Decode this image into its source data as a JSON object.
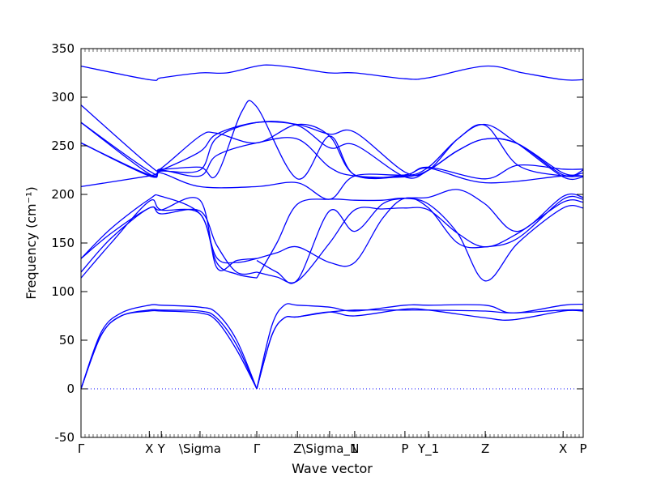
{
  "chart_data": {
    "type": "line",
    "xlabel": "Wave vector",
    "ylabel": "Frequency (cm⁻¹)",
    "ylim": [
      -50,
      350
    ],
    "yticks": [
      -50,
      0,
      50,
      100,
      150,
      200,
      250,
      300,
      350
    ],
    "xlim": [
      0,
      1
    ],
    "grid": false,
    "band_color": "#0000ff",
    "zero_line_color": "#0000ff",
    "zero_line_style": "dotted",
    "high_symmetry_points": [
      {
        "label": "Γ",
        "x": 0.0
      },
      {
        "label": "X",
        "x": 0.136
      },
      {
        "label": "Y",
        "x": 0.16
      },
      {
        "label": "\\Sigma",
        "x": 0.237
      },
      {
        "label": "Γ",
        "x": 0.35
      },
      {
        "label": "Z",
        "x": 0.431
      },
      {
        "label": "\\Sigma_1",
        "x": 0.495
      },
      {
        "label": "N",
        "x": 0.545
      },
      {
        "label": "P",
        "x": 0.645
      },
      {
        "label": "Y_1",
        "x": 0.692
      },
      {
        "label": "Z",
        "x": 0.805
      },
      {
        "label": "X",
        "x": 0.96
      },
      {
        "label": "P",
        "x": 1.0
      }
    ],
    "series": [
      {
        "x": [
          0,
          0.04,
          0.08,
          0.136,
          0.16,
          0.237,
          0.27,
          0.31,
          0.35
        ],
        "values": [
          0,
          55,
          75,
          80,
          80,
          78,
          70,
          40,
          0
        ]
      },
      {
        "x": [
          0,
          0.04,
          0.08,
          0.136,
          0.16,
          0.237,
          0.27,
          0.31,
          0.35
        ],
        "values": [
          0,
          55,
          75,
          81,
          81,
          80,
          73,
          45,
          0
        ]
      },
      {
        "x": [
          0,
          0.04,
          0.08,
          0.136,
          0.16,
          0.237,
          0.27,
          0.31,
          0.35
        ],
        "values": [
          0,
          58,
          78,
          86,
          86,
          84,
          78,
          50,
          0
        ]
      },
      {
        "x": [
          0.35,
          0.38,
          0.405,
          0.431,
          0.495,
          0.545,
          0.645,
          0.692,
          0.805,
          0.86,
          0.96,
          1.0
        ],
        "values": [
          0,
          55,
          73,
          74,
          79,
          75,
          82,
          81,
          73,
          71,
          80,
          80
        ]
      },
      {
        "x": [
          0.35,
          0.38,
          0.405,
          0.431,
          0.495,
          0.545,
          0.645,
          0.692,
          0.805,
          0.86,
          0.96,
          1.0
        ],
        "values": [
          0,
          55,
          73,
          74,
          79,
          81,
          81,
          81,
          80,
          78,
          81,
          81
        ]
      },
      {
        "x": [
          0.35,
          0.38,
          0.405,
          0.431,
          0.495,
          0.545,
          0.645,
          0.692,
          0.805,
          0.86,
          0.96,
          1.0
        ],
        "values": [
          0,
          65,
          86,
          86,
          84,
          80,
          86,
          86,
          86,
          78,
          86,
          87
        ]
      },
      {
        "x": [
          0,
          0.06,
          0.136,
          0.16,
          0.237,
          0.27,
          0.31,
          0.35
        ],
        "values": [
          114,
          150,
          193,
          184,
          180,
          130,
          118,
          114
        ]
      },
      {
        "x": [
          0,
          0.06,
          0.136,
          0.16,
          0.237,
          0.27,
          0.31,
          0.35
        ],
        "values": [
          120,
          155,
          186,
          180,
          183,
          148,
          120,
          120
        ]
      },
      {
        "x": [
          0,
          0.06,
          0.136,
          0.16,
          0.237,
          0.27,
          0.31,
          0.35
        ],
        "values": [
          134,
          160,
          186,
          184,
          194,
          125,
          132,
          134
        ]
      },
      {
        "x": [
          0,
          0.06,
          0.136,
          0.16,
          0.237,
          0.27,
          0.31,
          0.35
        ],
        "values": [
          134,
          165,
          195,
          198,
          180,
          135,
          130,
          134
        ]
      },
      {
        "x": [
          0.35,
          0.39,
          0.431,
          0.495,
          0.545,
          0.6,
          0.645,
          0.692,
          0.75,
          0.805,
          0.87,
          0.96,
          1.0
        ],
        "values": [
          114,
          150,
          190,
          195,
          194,
          194,
          196,
          190,
          160,
          111,
          150,
          186,
          186
        ]
      },
      {
        "x": [
          0.35,
          0.39,
          0.431,
          0.495,
          0.545,
          0.6,
          0.645,
          0.692,
          0.75,
          0.805,
          0.87,
          0.96,
          1.0
        ],
        "values": [
          120,
          115,
          111,
          150,
          184,
          185,
          186,
          184,
          160,
          146,
          160,
          192,
          192
        ]
      },
      {
        "x": [
          0.35,
          0.39,
          0.431,
          0.495,
          0.545,
          0.6,
          0.645,
          0.692,
          0.75,
          0.805,
          0.87,
          0.96,
          1.0
        ],
        "values": [
          134,
          140,
          146,
          130,
          130,
          175,
          196,
          186,
          150,
          146,
          155,
          195,
          195
        ]
      },
      {
        "x": [
          0.35,
          0.39,
          0.431,
          0.495,
          0.545,
          0.6,
          0.645,
          0.692,
          0.75,
          0.805,
          0.87,
          0.96,
          1.0
        ],
        "values": [
          132,
          120,
          112,
          183,
          162,
          190,
          196,
          197,
          205,
          190,
          162,
          198,
          197
        ]
      },
      {
        "x": [
          0,
          0.136,
          0.16,
          0.237,
          0.35,
          0.431,
          0.495,
          0.545,
          0.645,
          0.692,
          0.805,
          0.96,
          1.0
        ],
        "values": [
          208,
          219,
          222,
          208,
          208,
          212,
          195,
          219,
          220,
          227,
          212,
          219,
          219
        ]
      },
      {
        "x": [
          0,
          0.136,
          0.16,
          0.237,
          0.27,
          0.35,
          0.431,
          0.495,
          0.545,
          0.645,
          0.692,
          0.75,
          0.805,
          0.87,
          0.96,
          1.0
        ],
        "values": [
          253,
          220,
          225,
          219,
          240,
          253,
          257,
          228,
          219,
          218,
          225,
          245,
          257,
          252,
          222,
          222
        ]
      },
      {
        "x": [
          0,
          0.136,
          0.16,
          0.237,
          0.27,
          0.35,
          0.431,
          0.495,
          0.545,
          0.645,
          0.692,
          0.75,
          0.805,
          0.87,
          0.96,
          1.0
        ],
        "values": [
          253,
          219,
          224,
          225,
          258,
          274,
          271,
          248,
          251,
          218,
          225,
          245,
          257,
          252,
          220,
          225
        ]
      },
      {
        "x": [
          0,
          0.136,
          0.16,
          0.237,
          0.27,
          0.35,
          0.431,
          0.495,
          0.545,
          0.645,
          0.692,
          0.75,
          0.805,
          0.87,
          0.96,
          1.0
        ],
        "values": [
          274,
          221,
          225,
          244,
          262,
          274,
          272,
          262,
          264,
          223,
          225,
          257,
          272,
          252,
          218,
          218
        ]
      },
      {
        "x": [
          0,
          0.136,
          0.16,
          0.237,
          0.27,
          0.35,
          0.431,
          0.495,
          0.545,
          0.645,
          0.692,
          0.75,
          0.805,
          0.87,
          0.96,
          1.0
        ],
        "values": [
          274,
          224,
          227,
          260,
          263,
          253,
          272,
          260,
          220,
          219,
          228,
          257,
          271,
          230,
          219,
          219
        ]
      },
      {
        "x": [
          0,
          0.136,
          0.16,
          0.237,
          0.27,
          0.32,
          0.35,
          0.431,
          0.495,
          0.545,
          0.645,
          0.692,
          0.805,
          0.87,
          0.96,
          1.0
        ],
        "values": [
          292,
          230,
          226,
          228,
          220,
          285,
          290,
          216,
          260,
          220,
          220,
          228,
          216,
          230,
          226,
          226
        ]
      },
      {
        "x": [
          0,
          0.136,
          0.16,
          0.237,
          0.29,
          0.35,
          0.38,
          0.431,
          0.495,
          0.545,
          0.645,
          0.692,
          0.805,
          0.88,
          0.96,
          1.0
        ],
        "values": [
          332,
          318,
          320,
          325,
          325,
          332,
          333,
          330,
          325,
          325,
          319,
          320,
          332,
          325,
          318,
          318
        ]
      }
    ]
  }
}
